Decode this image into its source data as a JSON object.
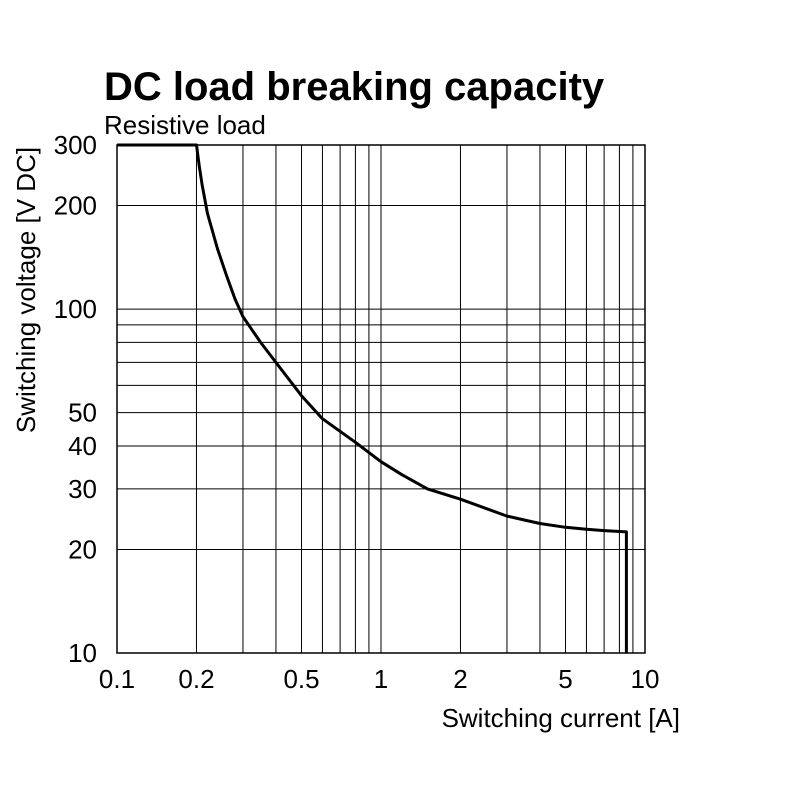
{
  "chart_data": {
    "type": "line",
    "title": "DC load breaking capacity",
    "subtitle": "Resistive load",
    "xlabel": "Switching current [A]",
    "ylabel": "Switching voltage [V DC]",
    "xscale": "log",
    "yscale": "log",
    "xlim": [
      0.1,
      10
    ],
    "ylim": [
      10,
      300
    ],
    "x_ticks": [
      {
        "value": 0.1,
        "label": "0.1"
      },
      {
        "value": 0.2,
        "label": "0.2"
      },
      {
        "value": 0.5,
        "label": "0.5"
      },
      {
        "value": 1,
        "label": "1"
      },
      {
        "value": 2,
        "label": "2"
      },
      {
        "value": 5,
        "label": "5"
      },
      {
        "value": 10,
        "label": "10"
      }
    ],
    "y_ticks": [
      {
        "value": 10,
        "label": "10"
      },
      {
        "value": 20,
        "label": "20"
      },
      {
        "value": 30,
        "label": "30"
      },
      {
        "value": 40,
        "label": "40"
      },
      {
        "value": 50,
        "label": "50"
      },
      {
        "value": 100,
        "label": "100"
      },
      {
        "value": 200,
        "label": "200"
      },
      {
        "value": 300,
        "label": "300"
      }
    ],
    "x_gridlines": [
      0.1,
      0.2,
      0.3,
      0.4,
      0.5,
      0.6,
      0.7,
      0.8,
      0.9,
      1,
      2,
      3,
      4,
      5,
      6,
      7,
      8,
      9,
      10
    ],
    "y_gridlines": [
      10,
      20,
      30,
      40,
      50,
      60,
      70,
      80,
      90,
      100,
      200,
      300
    ],
    "grid": true,
    "series": [
      {
        "name": "Resistive load",
        "x": [
          0.1,
          0.2,
          0.205,
          0.21,
          0.22,
          0.24,
          0.26,
          0.28,
          0.3,
          0.35,
          0.4,
          0.5,
          0.6,
          0.8,
          1.0,
          1.2,
          1.5,
          2,
          3,
          4,
          5,
          6,
          7,
          8.5,
          8.5
        ],
        "y": [
          300,
          300,
          260,
          230,
          190,
          150,
          125,
          107,
          95,
          80,
          70,
          56,
          48,
          41,
          36,
          33,
          30,
          28,
          25,
          23.8,
          23.2,
          22.9,
          22.7,
          22.5,
          10
        ]
      }
    ]
  }
}
